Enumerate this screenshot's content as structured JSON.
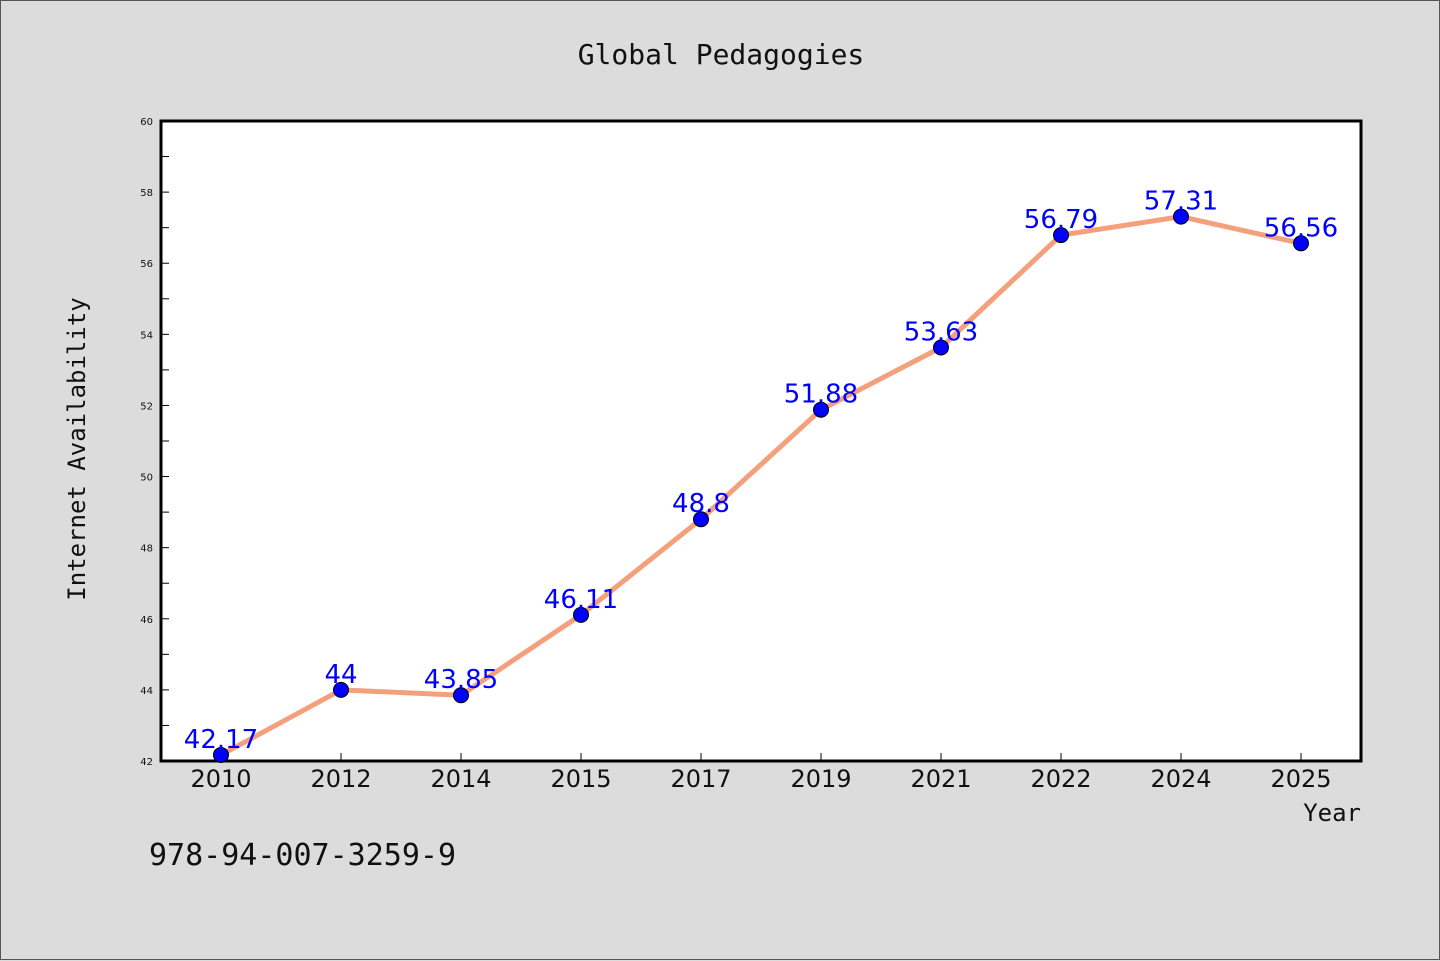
{
  "chart_data": {
    "type": "line",
    "title": "Global Pedagogies",
    "xlabel": "Year",
    "ylabel": "Internet Availability",
    "categories": [
      "2010",
      "2012",
      "2014",
      "2015",
      "2017",
      "2019",
      "2021",
      "2022",
      "2024",
      "2025"
    ],
    "series": [
      {
        "values": [
          42.17,
          44,
          43.85,
          46.11,
          48.8,
          51.88,
          53.63,
          56.79,
          57.31,
          56.56
        ],
        "data_labels": [
          "42.17",
          "44",
          "43.85",
          "46.11",
          "48.8",
          "51.88",
          "53.63",
          "56.79",
          "57.31",
          "56.56"
        ]
      }
    ],
    "ylim": [
      42,
      60
    ],
    "yticks": [
      "42",
      "44",
      "46",
      "48",
      "50",
      "52",
      "54",
      "56",
      "58",
      "60"
    ],
    "grid": false,
    "colors": {
      "line": "#f4a07c",
      "marker": "#0000ff",
      "label": "#0000ff"
    }
  },
  "footer": {
    "isbn": "978-94-007-3259-9"
  }
}
